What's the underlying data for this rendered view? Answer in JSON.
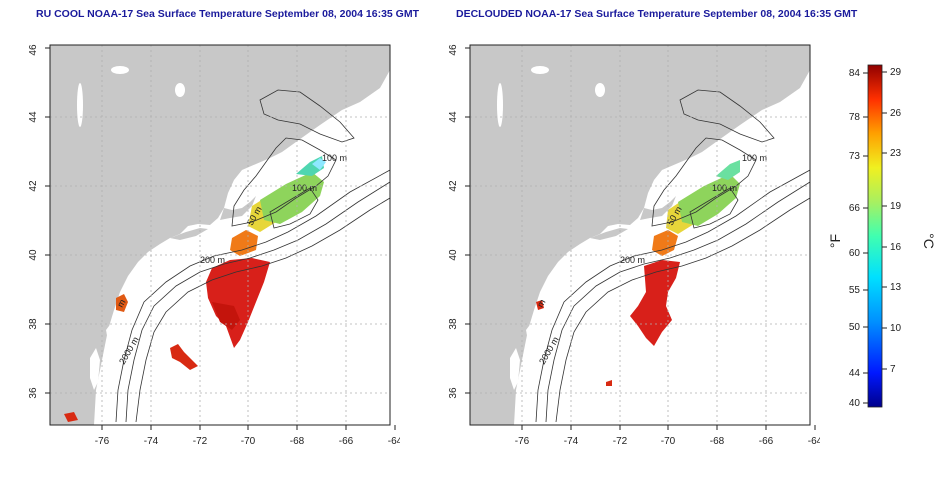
{
  "titles": {
    "left": "RU COOL NOAA-17 Sea Surface Temperature September 08, 2004 16:35 GMT",
    "right": "DECLOUDED NOAA-17 Sea Surface Temperature September 08, 2004 16:35 GMT"
  },
  "axes": {
    "x_ticks": [
      "-76",
      "-74",
      "-72",
      "-70",
      "-68",
      "-66",
      "-64"
    ],
    "y_ticks": [
      "36",
      "38",
      "40",
      "42",
      "44",
      "46"
    ]
  },
  "contour_labels": {
    "left": [
      "100 m",
      "100 m",
      "50 m",
      "200 m",
      "2000 m",
      "200 m",
      "m"
    ],
    "right": [
      "100 m",
      "100 m",
      "50 m",
      "200 m",
      "2000 m",
      "200 m",
      "m"
    ]
  },
  "colorbar": {
    "f_label": "°F",
    "c_label": "°C",
    "f_ticks": [
      "84",
      "78",
      "73",
      "66",
      "60",
      "55",
      "50",
      "44",
      "40"
    ],
    "c_ticks": [
      "29",
      "26",
      "23",
      "19",
      "16",
      "13",
      "10",
      "7"
    ]
  },
  "colors": {
    "title": "#1a1a9c",
    "land": "#c8c8c8",
    "grid": "#b0b0b0"
  }
}
